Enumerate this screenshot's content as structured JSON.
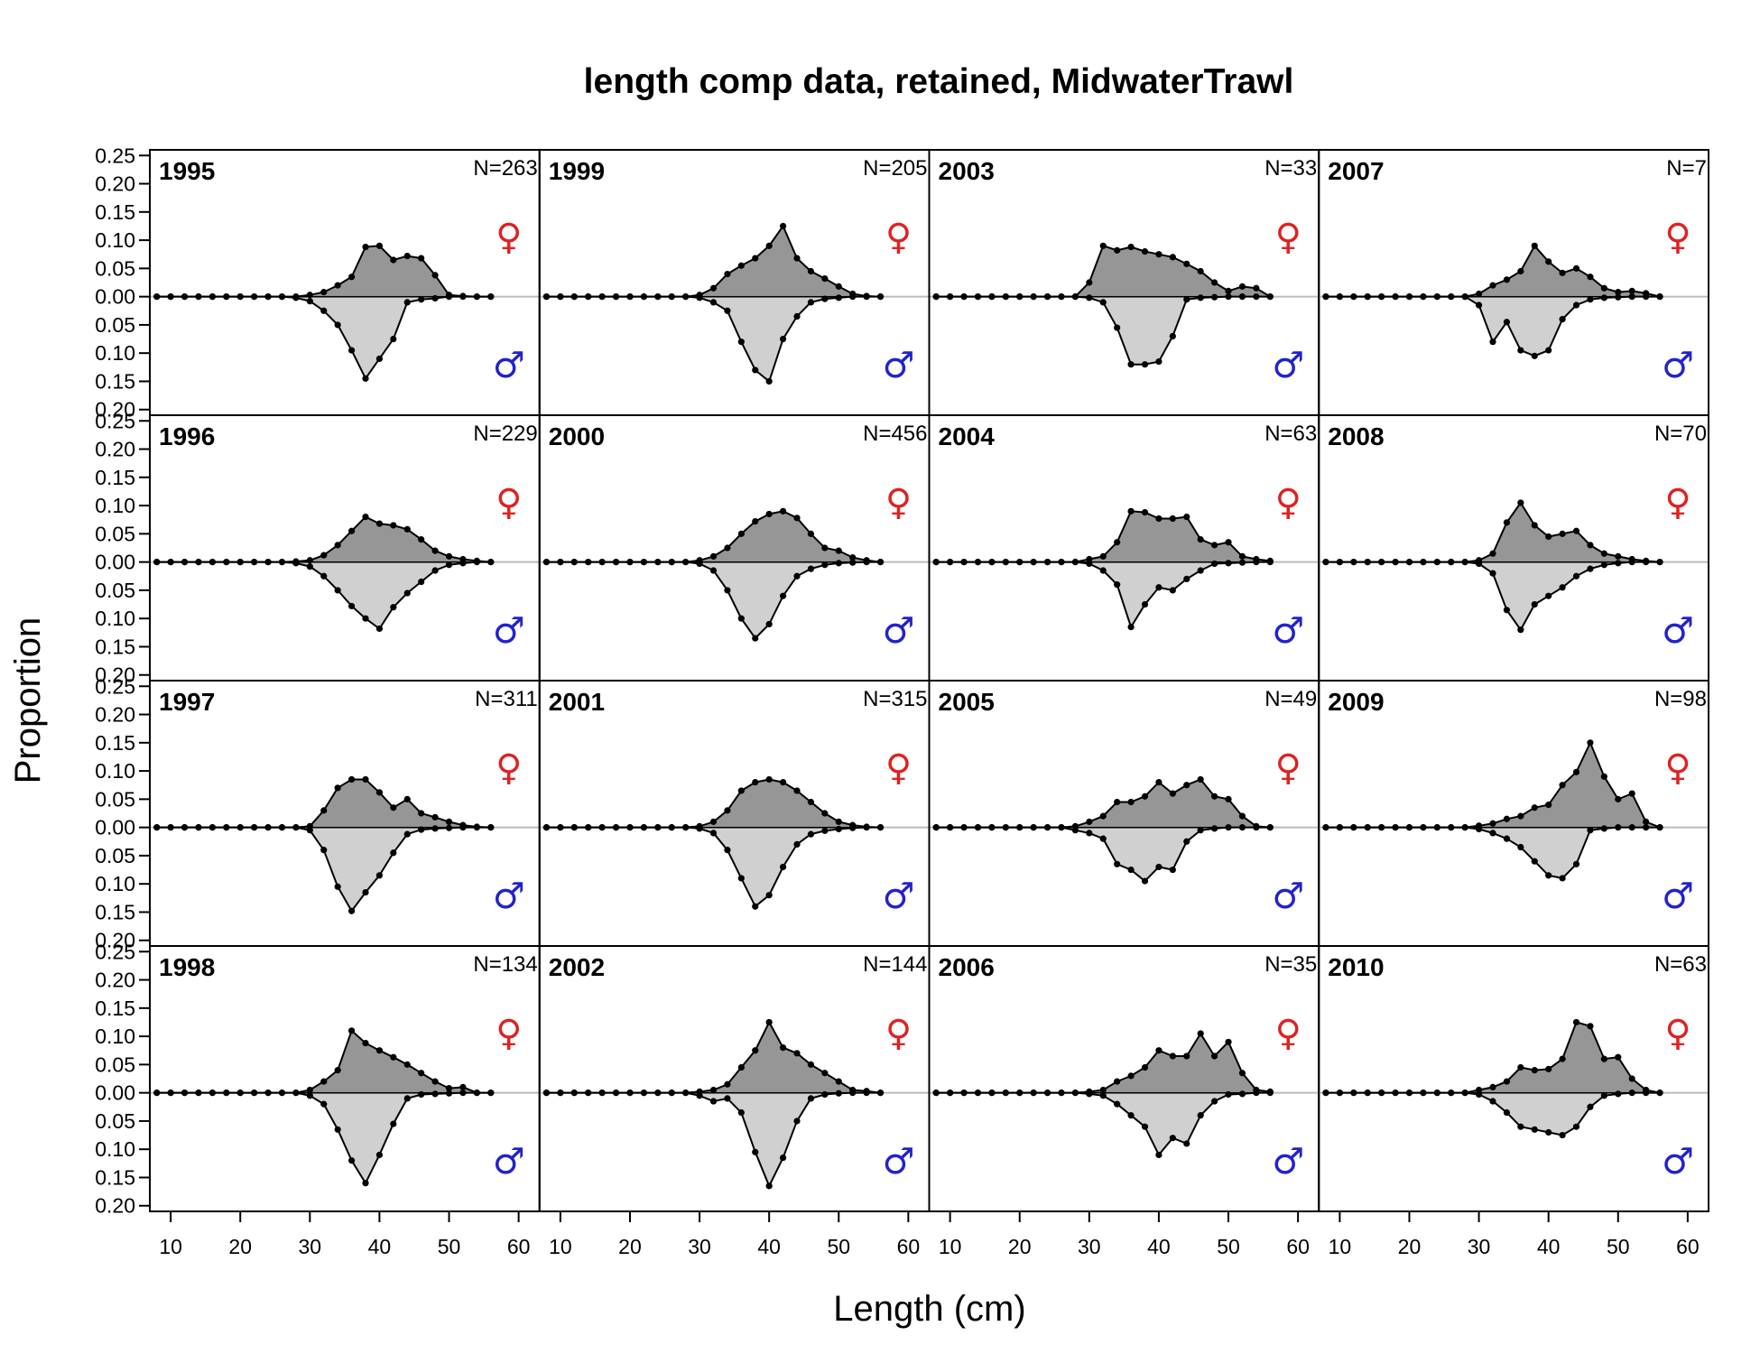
{
  "chart_data": {
    "type": "area",
    "title": "length comp data, retained, MidwaterTrawl",
    "xlabel": "Length (cm)",
    "ylabel": "Proportion",
    "xlim": [
      7,
      63
    ],
    "xticks": [
      "10",
      "20",
      "30",
      "40",
      "50",
      "60"
    ],
    "ylim": [
      -0.21,
      0.26
    ],
    "yticks": [
      {
        "v": 0.25,
        "label": "0.25"
      },
      {
        "v": 0.2,
        "label": "0.20"
      },
      {
        "v": 0.15,
        "label": "0.15"
      },
      {
        "v": 0.1,
        "label": "0.10"
      },
      {
        "v": 0.05,
        "label": "0.05"
      },
      {
        "v": 0,
        "label": "0.00"
      },
      {
        "v": -0.05,
        "label": "0.05"
      },
      {
        "v": -0.1,
        "label": "0.10"
      },
      {
        "v": -0.15,
        "label": "0.15"
      },
      {
        "v": -0.2,
        "label": "0.20"
      }
    ],
    "female_symbol": "♀",
    "male_symbol": "♂",
    "colors": {
      "female_fill": "#969696",
      "male_fill": "#d0d0d0",
      "line": "#000000",
      "zero_line": "#bbbbbb",
      "female_symbol": "#dd2222",
      "male_symbol": "#2222cc"
    },
    "length_bins": [
      8,
      10,
      12,
      14,
      16,
      18,
      20,
      22,
      24,
      26,
      28,
      30,
      32,
      34,
      36,
      38,
      40,
      42,
      44,
      46,
      48,
      50,
      52,
      54,
      56
    ],
    "panels": [
      {
        "year": "1995",
        "n": "N=263",
        "female": [
          0,
          0,
          0,
          0,
          0,
          0,
          0,
          0,
          0,
          0,
          0,
          0.003,
          0.008,
          0.02,
          0.035,
          0.088,
          0.09,
          0.065,
          0.072,
          0.068,
          0.038,
          0.003,
          0.001,
          0,
          0
        ],
        "male": [
          0,
          0,
          0,
          0,
          0,
          0,
          0,
          0,
          0,
          0,
          -0.002,
          -0.008,
          -0.025,
          -0.05,
          -0.095,
          -0.145,
          -0.11,
          -0.075,
          -0.01,
          -0.005,
          -0.003,
          0,
          0,
          0,
          0
        ]
      },
      {
        "year": "1996",
        "n": "N=229",
        "female": [
          0,
          0,
          0,
          0,
          0,
          0,
          0,
          0,
          0,
          0,
          0.001,
          0.003,
          0.012,
          0.03,
          0.055,
          0.08,
          0.068,
          0.065,
          0.058,
          0.04,
          0.02,
          0.01,
          0.005,
          0.002,
          0
        ],
        "male": [
          0,
          0,
          0,
          0,
          0,
          0,
          0,
          0,
          0,
          0,
          -0.002,
          -0.008,
          -0.025,
          -0.05,
          -0.078,
          -0.1,
          -0.118,
          -0.08,
          -0.055,
          -0.035,
          -0.015,
          -0.005,
          -0.002,
          0,
          0
        ]
      },
      {
        "year": "1997",
        "n": "N=311",
        "female": [
          0,
          0,
          0,
          0,
          0,
          0,
          0,
          0,
          0,
          0,
          0,
          0.002,
          0.03,
          0.07,
          0.085,
          0.085,
          0.062,
          0.035,
          0.05,
          0.025,
          0.018,
          0.01,
          0.004,
          0.001,
          0
        ],
        "male": [
          0,
          0,
          0,
          0,
          0,
          0,
          0,
          0,
          0,
          0,
          0,
          -0.005,
          -0.04,
          -0.105,
          -0.148,
          -0.115,
          -0.085,
          -0.045,
          -0.012,
          -0.004,
          -0.002,
          -0.001,
          0,
          0,
          0
        ]
      },
      {
        "year": "1998",
        "n": "N=134",
        "female": [
          0,
          0,
          0,
          0,
          0,
          0,
          0,
          0,
          0,
          0,
          0,
          0.005,
          0.02,
          0.04,
          0.11,
          0.088,
          0.075,
          0.063,
          0.05,
          0.035,
          0.02,
          0.008,
          0.01,
          0,
          0
        ],
        "male": [
          0,
          0,
          0,
          0,
          0,
          0,
          0,
          0,
          0,
          0,
          0,
          -0.005,
          -0.02,
          -0.065,
          -0.12,
          -0.16,
          -0.11,
          -0.055,
          -0.01,
          -0.003,
          -0.002,
          -0.001,
          0,
          0,
          0
        ]
      },
      {
        "year": "1999",
        "n": "N=205",
        "female": [
          0,
          0,
          0,
          0,
          0,
          0,
          0,
          0,
          0,
          0,
          0,
          0.003,
          0.015,
          0.04,
          0.055,
          0.068,
          0.09,
          0.125,
          0.068,
          0.045,
          0.032,
          0.018,
          0.005,
          0.001,
          0
        ],
        "male": [
          0,
          0,
          0,
          0,
          0,
          0,
          0,
          0,
          0,
          0,
          0,
          -0.002,
          -0.01,
          -0.025,
          -0.08,
          -0.13,
          -0.15,
          -0.075,
          -0.035,
          -0.01,
          -0.004,
          -0.002,
          0,
          0,
          0
        ]
      },
      {
        "year": "2000",
        "n": "N=456",
        "female": [
          0,
          0,
          0,
          0,
          0,
          0,
          0,
          0,
          0,
          0,
          0,
          0.003,
          0.01,
          0.025,
          0.05,
          0.072,
          0.085,
          0.09,
          0.078,
          0.05,
          0.025,
          0.02,
          0.008,
          0.003,
          0
        ],
        "male": [
          0,
          0,
          0,
          0,
          0,
          0,
          0,
          0,
          0,
          0,
          0,
          -0.003,
          -0.015,
          -0.05,
          -0.1,
          -0.135,
          -0.11,
          -0.06,
          -0.025,
          -0.012,
          -0.005,
          -0.002,
          -0.001,
          0,
          0
        ]
      },
      {
        "year": "2001",
        "n": "N=315",
        "female": [
          0,
          0,
          0,
          0,
          0,
          0,
          0,
          0,
          0,
          0,
          0,
          0.002,
          0.01,
          0.03,
          0.065,
          0.08,
          0.085,
          0.08,
          0.065,
          0.045,
          0.025,
          0.01,
          0.004,
          0.001,
          0
        ],
        "male": [
          0,
          0,
          0,
          0,
          0,
          0,
          0,
          0,
          0,
          0,
          0,
          -0.002,
          -0.01,
          -0.04,
          -0.09,
          -0.14,
          -0.12,
          -0.07,
          -0.03,
          -0.012,
          -0.006,
          -0.003,
          -0.001,
          0,
          0
        ]
      },
      {
        "year": "2002",
        "n": "N=144",
        "female": [
          0,
          0,
          0,
          0,
          0,
          0,
          0,
          0,
          0,
          0,
          0,
          0.002,
          0.005,
          0.015,
          0.045,
          0.075,
          0.125,
          0.08,
          0.07,
          0.05,
          0.035,
          0.02,
          0.005,
          0.003,
          0
        ],
        "male": [
          0,
          0,
          0,
          0,
          0,
          0,
          0,
          0,
          0,
          0,
          0,
          -0.005,
          -0.015,
          -0.01,
          -0.035,
          -0.105,
          -0.165,
          -0.115,
          -0.05,
          -0.01,
          -0.003,
          -0.001,
          0,
          0,
          0
        ]
      },
      {
        "year": "2003",
        "n": "N=33",
        "female": [
          0,
          0,
          0,
          0,
          0,
          0,
          0,
          0,
          0,
          0,
          0,
          0.025,
          0.09,
          0.082,
          0.088,
          0.08,
          0.075,
          0.07,
          0.058,
          0.045,
          0.025,
          0.01,
          0.018,
          0.015,
          0
        ],
        "male": [
          0,
          0,
          0,
          0,
          0,
          0,
          0,
          0,
          0,
          0,
          0,
          -0.002,
          -0.01,
          -0.055,
          -0.12,
          -0.12,
          -0.115,
          -0.07,
          -0.005,
          -0.002,
          -0.001,
          0,
          0,
          0,
          0
        ]
      },
      {
        "year": "2004",
        "n": "N=63",
        "female": [
          0,
          0,
          0,
          0,
          0,
          0,
          0,
          0,
          0,
          0,
          0,
          0.005,
          0.01,
          0.035,
          0.09,
          0.088,
          0.077,
          0.077,
          0.08,
          0.04,
          0.03,
          0.035,
          0.01,
          0.005,
          0.002
        ],
        "male": [
          0,
          0,
          0,
          0,
          0,
          0,
          0,
          0,
          0,
          0,
          0,
          -0.003,
          -0.015,
          -0.04,
          -0.115,
          -0.075,
          -0.045,
          -0.05,
          -0.03,
          -0.015,
          -0.003,
          -0.002,
          -0.001,
          0,
          0
        ]
      },
      {
        "year": "2005",
        "n": "N=49",
        "female": [
          0,
          0,
          0,
          0,
          0,
          0,
          0,
          0,
          0,
          0,
          0.002,
          0.01,
          0.02,
          0.045,
          0.045,
          0.055,
          0.08,
          0.06,
          0.075,
          0.085,
          0.055,
          0.05,
          0.02,
          0.002,
          0
        ],
        "male": [
          0,
          0,
          0,
          0,
          0,
          0,
          0,
          0,
          0,
          0,
          -0.005,
          -0.01,
          -0.02,
          -0.065,
          -0.075,
          -0.095,
          -0.07,
          -0.075,
          -0.025,
          -0.005,
          -0.002,
          0,
          0,
          0,
          0
        ]
      },
      {
        "year": "2006",
        "n": "N=35",
        "female": [
          0,
          0,
          0,
          0,
          0,
          0,
          0,
          0,
          0,
          0,
          0,
          0.002,
          0.005,
          0.02,
          0.03,
          0.045,
          0.075,
          0.065,
          0.065,
          0.105,
          0.065,
          0.09,
          0.035,
          0.005,
          0.002
        ],
        "male": [
          0,
          0,
          0,
          0,
          0,
          0,
          0,
          0,
          0,
          0,
          0,
          -0.002,
          -0.005,
          -0.02,
          -0.04,
          -0.06,
          -0.11,
          -0.08,
          -0.09,
          -0.04,
          -0.015,
          -0.003,
          -0.002,
          0,
          0
        ]
      },
      {
        "year": "2007",
        "n": "N=7",
        "female": [
          0,
          0,
          0,
          0,
          0,
          0,
          0,
          0,
          0,
          0,
          0,
          0.005,
          0.02,
          0.03,
          0.045,
          0.09,
          0.062,
          0.042,
          0.05,
          0.035,
          0.015,
          0.008,
          0.01,
          0.006,
          0
        ],
        "male": [
          0,
          0,
          0,
          0,
          0,
          0,
          0,
          0,
          0,
          0,
          0,
          -0.015,
          -0.08,
          -0.045,
          -0.095,
          -0.105,
          -0.095,
          -0.04,
          -0.015,
          -0.005,
          -0.002,
          -0.001,
          0,
          0,
          0
        ]
      },
      {
        "year": "2008",
        "n": "N=70",
        "female": [
          0,
          0,
          0,
          0,
          0,
          0,
          0,
          0,
          0,
          0,
          0,
          0.003,
          0.015,
          0.07,
          0.105,
          0.065,
          0.045,
          0.05,
          0.055,
          0.03,
          0.015,
          0.01,
          0.005,
          0.002,
          0
        ],
        "male": [
          0,
          0,
          0,
          0,
          0,
          0,
          0,
          0,
          0,
          0,
          0,
          -0.003,
          -0.02,
          -0.085,
          -0.12,
          -0.075,
          -0.06,
          -0.045,
          -0.025,
          -0.012,
          -0.005,
          -0.002,
          0,
          0,
          0
        ]
      },
      {
        "year": "2009",
        "n": "N=98",
        "female": [
          0,
          0,
          0,
          0,
          0,
          0,
          0,
          0,
          0,
          0,
          0,
          0.003,
          0.007,
          0.015,
          0.02,
          0.035,
          0.04,
          0.075,
          0.098,
          0.15,
          0.09,
          0.05,
          0.06,
          0.01,
          0
        ],
        "male": [
          0,
          0,
          0,
          0,
          0,
          0,
          0,
          0,
          0,
          0,
          0,
          -0.003,
          -0.01,
          -0.02,
          -0.035,
          -0.06,
          -0.085,
          -0.09,
          -0.065,
          -0.005,
          -0.002,
          0,
          0,
          0,
          0
        ]
      },
      {
        "year": "2010",
        "n": "N=63",
        "female": [
          0,
          0,
          0,
          0,
          0,
          0,
          0,
          0,
          0,
          0,
          0,
          0.005,
          0.01,
          0.02,
          0.045,
          0.04,
          0.042,
          0.06,
          0.125,
          0.118,
          0.06,
          0.063,
          0.025,
          0.005,
          0
        ],
        "male": [
          0,
          0,
          0,
          0,
          0,
          0,
          0,
          0,
          0,
          0,
          0,
          -0.003,
          -0.015,
          -0.035,
          -0.06,
          -0.065,
          -0.07,
          -0.075,
          -0.06,
          -0.025,
          -0.005,
          -0.002,
          0,
          0,
          0
        ]
      }
    ]
  }
}
